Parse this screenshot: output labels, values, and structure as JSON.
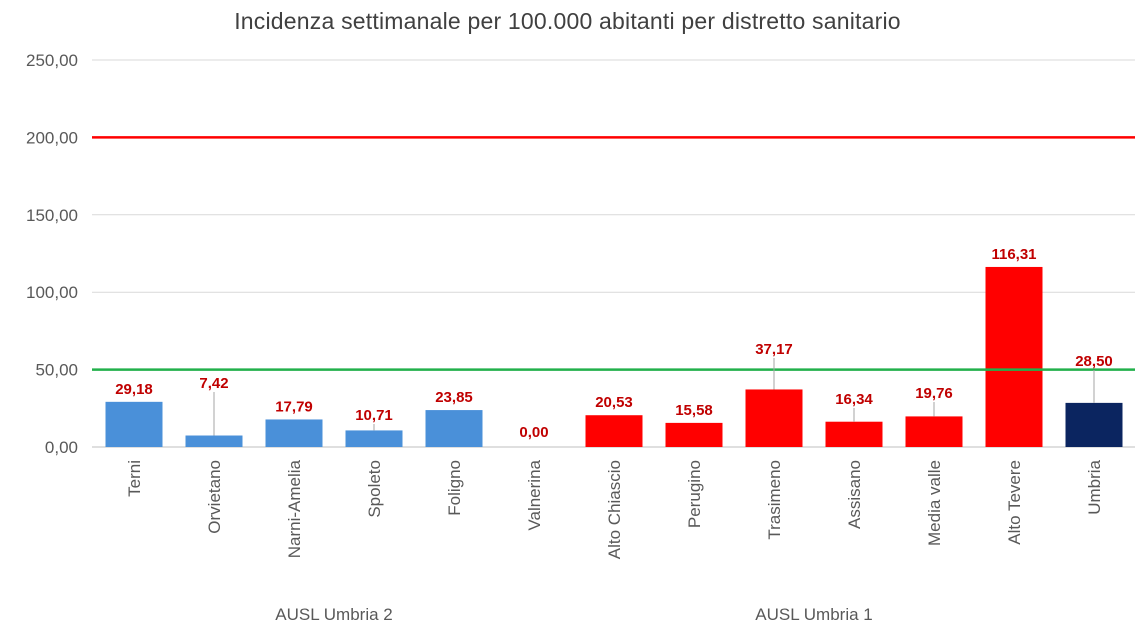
{
  "chart_data": {
    "type": "bar",
    "title": "Incidenza settimanale per 100.000 abitanti per distretto sanitario",
    "xlabel": "",
    "ylabel": "",
    "ylim": [
      0,
      250
    ],
    "y_ticks": [
      "0,00",
      "50,00",
      "100,00",
      "150,00",
      "200,00",
      "250,00"
    ],
    "y_tick_values": [
      0,
      50,
      100,
      150,
      200,
      250
    ],
    "grid": true,
    "categories": [
      "Terni",
      "Orvietano",
      "Narni-Amelia",
      "Spoleto",
      "Foligno",
      "Valnerina",
      "Alto Chiascio",
      "Perugino",
      "Trasimeno",
      "Assisano",
      "Media valle",
      "Alto Tevere",
      "Umbria"
    ],
    "values": [
      29.18,
      7.42,
      17.79,
      10.71,
      23.85,
      0.0,
      20.53,
      15.58,
      37.17,
      16.34,
      19.76,
      116.31,
      28.5
    ],
    "value_labels": [
      "29,18",
      "7,42",
      "17,79",
      "10,71",
      "23,85",
      "0,00",
      "20,53",
      "15,58",
      "37,17",
      "16,34",
      "19,76",
      "116,31",
      "28,50"
    ],
    "bar_colors": [
      "#4a90d9",
      "#4a90d9",
      "#4a90d9",
      "#4a90d9",
      "#4a90d9",
      "#4a90d9",
      "#ff0000",
      "#ff0000",
      "#ff0000",
      "#ff0000",
      "#ff0000",
      "#ff0000",
      "#0b2560"
    ],
    "groups": [
      {
        "label": "AUSL Umbria 2",
        "from": 0,
        "to": 5
      },
      {
        "label": "AUSL Umbria 1",
        "from": 6,
        "to": 11
      }
    ],
    "reference_lines": [
      {
        "value": 200,
        "color": "#ff0000"
      },
      {
        "value": 50,
        "color": "#22b04b"
      }
    ],
    "label_color": "#c00000"
  }
}
